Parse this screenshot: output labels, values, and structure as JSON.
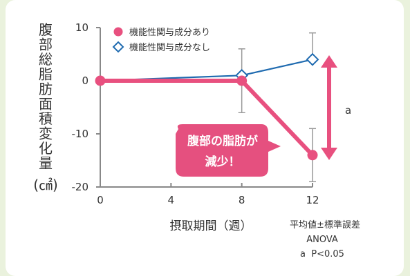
{
  "chart_data": {
    "type": "line",
    "ylabel_chars": [
      "腹",
      "部",
      "総",
      "脂",
      "肪",
      "面",
      "積",
      "変",
      "化",
      "量"
    ],
    "ylabel_unit": "(㎠)",
    "xlabel": "摂取期間（週）",
    "x_ticks": [
      "0",
      "4",
      "8",
      "12"
    ],
    "y_ticks": [
      "10",
      "0",
      "-10",
      "-20"
    ],
    "x": [
      0,
      8,
      12
    ],
    "xlim": [
      0,
      12
    ],
    "ylim": [
      -20,
      10
    ],
    "series": [
      {
        "name": "機能性関与成分あり",
        "color": "#e8507f",
        "marker": "circle",
        "values": [
          0,
          0,
          -14
        ],
        "error_low": [
          null,
          null,
          -9
        ],
        "error_high": [
          null,
          null,
          -19
        ]
      },
      {
        "name": "機能性関与成分なし",
        "color": "#1f6bb0",
        "marker": "diamond",
        "values": [
          0,
          1,
          4
        ],
        "error_low": [
          null,
          -6,
          null
        ],
        "error_high": [
          null,
          6,
          9
        ]
      }
    ],
    "significance_label": "a",
    "callout": [
      "腹部の脂肪が",
      "減少！"
    ],
    "notes": [
      "平均値±標準誤差",
      "ANOVA",
      "a  P<0.05"
    ]
  }
}
